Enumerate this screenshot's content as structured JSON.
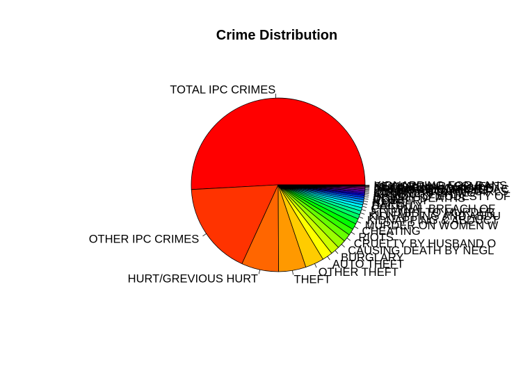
{
  "chart_data": {
    "type": "pie",
    "title": "Crime Distribution",
    "slices": [
      {
        "label": "TOTAL IPC CRIMES",
        "value": 50.0,
        "color": "#FF0000"
      },
      {
        "label": "OTHER IPC CRIMES",
        "value": 17.0,
        "color": "#FF3300"
      },
      {
        "label": "HURT/GREVIOUS HURT",
        "value": 6.8,
        "color": "#FF6600"
      },
      {
        "label": "THEFT",
        "value": 5.0,
        "color": "#FF9900"
      },
      {
        "label": "OTHER THEFT",
        "value": 3.4,
        "color": "#FFCC00"
      },
      {
        "label": "AUTO THEFT",
        "value": 1.9,
        "color": "#FFFF00"
      },
      {
        "label": "BURGLARY",
        "value": 1.6,
        "color": "#CCFF00"
      },
      {
        "label": "CAUSING DEATH BY NEGL",
        "value": 1.6,
        "color": "#99FF00"
      },
      {
        "label": "CRUELTY BY HUSBAND O",
        "value": 1.4,
        "color": "#66FF00"
      },
      {
        "label": "RIOTS",
        "value": 1.2,
        "color": "#33FF00"
      },
      {
        "label": "CHEATING",
        "value": 1.1,
        "color": "#00FF00"
      },
      {
        "label": "MURDER ON WOMEN W",
        "value": 1.0,
        "color": "#00FF33"
      },
      {
        "label": "KIDNAPPING & ABDUCT",
        "value": 0.8,
        "color": "#00FF66"
      },
      {
        "label": "KIDNAPPING AND ABDU",
        "value": 0.7,
        "color": "#00FF99"
      },
      {
        "label": "ATTEMPT TO MURDER",
        "value": 0.6,
        "color": "#00FFCC"
      },
      {
        "label": "CRIMINAL BREACH OF",
        "value": 0.55,
        "color": "#00FFFF"
      },
      {
        "label": "DACOITY",
        "value": 0.5,
        "color": "#00CCFF"
      },
      {
        "label": "RAPE",
        "value": 0.45,
        "color": "#0099FF"
      },
      {
        "label": "ROBBERY",
        "value": 0.4,
        "color": "#0066FF"
      },
      {
        "label": "DOWRY DEATHS",
        "value": 0.35,
        "color": "#0033FF"
      },
      {
        "label": "INSULT TO MODESTY OF",
        "value": 0.3,
        "color": "#0000FF"
      },
      {
        "label": "ARSON",
        "value": 0.28,
        "color": "#3300FF"
      },
      {
        "label": "COUNTERFEITING",
        "value": 0.25,
        "color": "#6600FF"
      },
      {
        "label": "IMPORTATION OF GIRLS",
        "value": 0.22,
        "color": "#9900FF"
      },
      {
        "label": "OTHER KIDNAPPING",
        "value": 0.2,
        "color": "#CC00FF"
      },
      {
        "label": "PREPARATION FOR DAC",
        "value": 0.18,
        "color": "#FF00FF"
      },
      {
        "label": "CULPABLE HOMICIDE",
        "value": 0.16,
        "color": "#FF00CC"
      },
      {
        "label": "MURDER",
        "value": 0.14,
        "color": "#FF0099"
      },
      {
        "label": "SEXUAL HARASSMENT",
        "value": 0.12,
        "color": "#FF0066"
      },
      {
        "label": "KIDNAPPING FOR RANS",
        "value": 0.1,
        "color": "#FF0033"
      }
    ]
  }
}
